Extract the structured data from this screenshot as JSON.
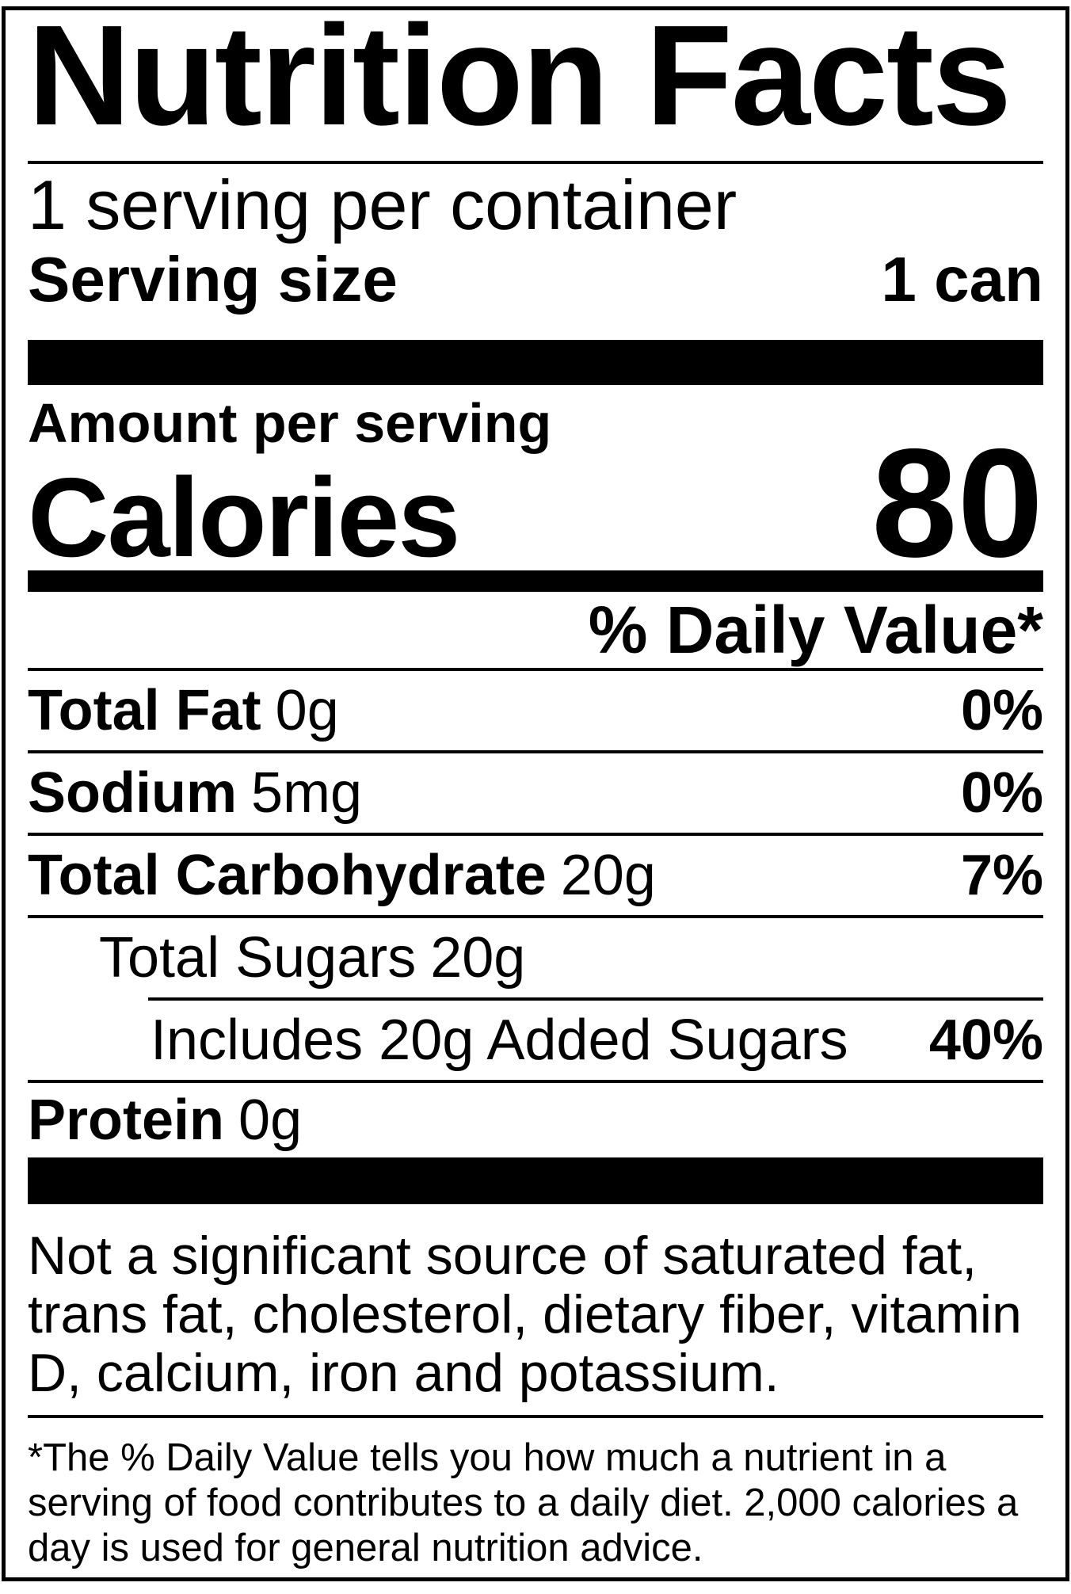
{
  "colors": {
    "ink": "#000000",
    "background": "#ffffff"
  },
  "label": {
    "title": "Nutrition Facts",
    "servings_per_container": "1 serving per container",
    "serving_size_label": "Serving size",
    "serving_size_value": "1 can",
    "amount_per_serving": "Amount per serving",
    "calories_label": "Calories",
    "calories_value": "80",
    "daily_value_header": "% Daily Value*",
    "nutrients": [
      {
        "name": "Total Fat",
        "amount": "0g",
        "dv": "0%"
      },
      {
        "name": "Sodium",
        "amount": "5mg",
        "dv": "0%"
      },
      {
        "name": "Total Carbohydrate",
        "amount": "20g",
        "dv": "7%"
      },
      {
        "name": "Total Sugars",
        "amount": "20g",
        "dv": ""
      },
      {
        "name": "Includes 20g Added Sugars",
        "amount": "",
        "dv": "40%"
      },
      {
        "name": "Protein",
        "amount": "0g",
        "dv": ""
      }
    ],
    "disclaimer": "Not a significant source of saturated fat, trans fat, cholesterol, dietary fiber, vitamin D, calcium, iron and potassium.",
    "footnote": "*The % Daily Value tells you how much a nutrient in a serving of food contributes to a daily diet. 2,000 calories a day is used for general nutrition advice."
  }
}
